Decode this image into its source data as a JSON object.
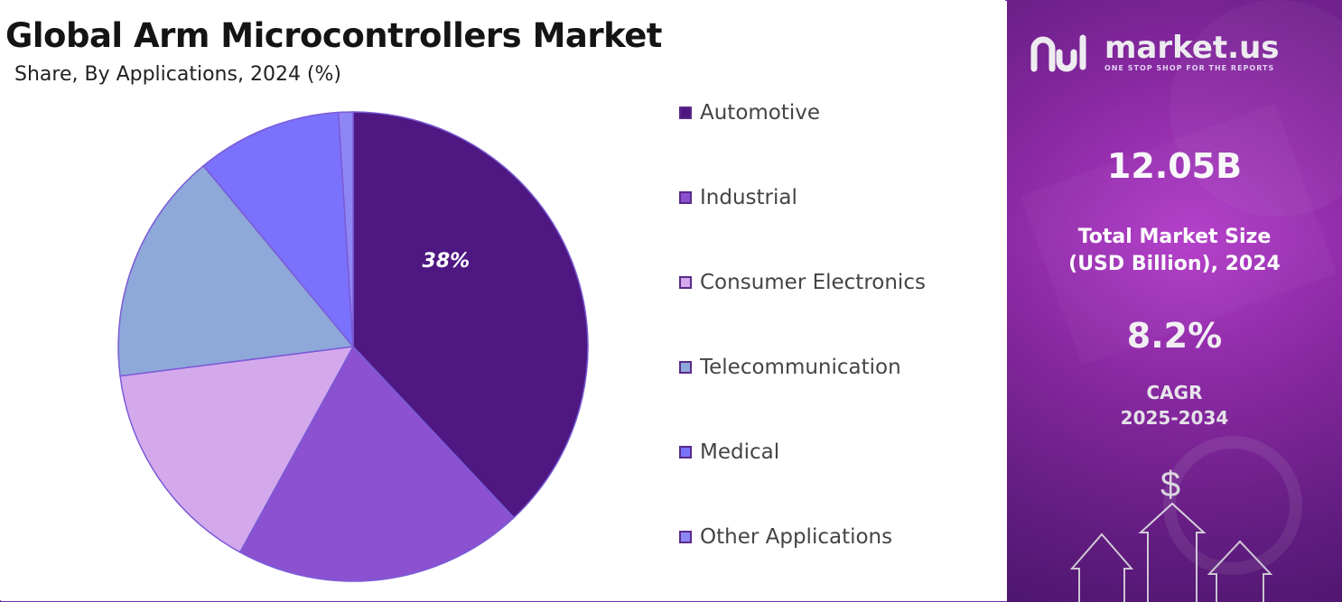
{
  "title": "Global Arm Microcontrollers Market",
  "subtitle": "Share, By Applications, 2024 (%)",
  "chart_data": {
    "type": "pie",
    "title": "Global Arm Microcontrollers Market",
    "subtitle": "Share, By Applications, 2024 (%)",
    "categories": [
      "Automotive",
      "Industrial",
      "Consumer Electronics",
      "Telecommunication",
      "Medical",
      "Other Applications"
    ],
    "values": [
      38,
      20,
      15,
      16,
      10,
      1
    ],
    "colors": [
      "#4e1782",
      "#8b51d1",
      "#d4a9ec",
      "#8fa8da",
      "#7a72fc",
      "#8f86f6"
    ],
    "data_labels": [
      "38%",
      "",
      "",
      "",
      "",
      ""
    ],
    "legend_position": "right"
  },
  "panel": {
    "brand_name": "market.us",
    "brand_tagline": "ONE STOP SHOP FOR THE REPORTS",
    "market_size_value": "12.05B",
    "market_size_label_line1": "Total Market Size",
    "market_size_label_line2": "(USD Billion), 2024",
    "cagr_value": "8.2%",
    "cagr_label": "CAGR",
    "cagr_period": "2025-2034",
    "currency_symbol": "$"
  }
}
